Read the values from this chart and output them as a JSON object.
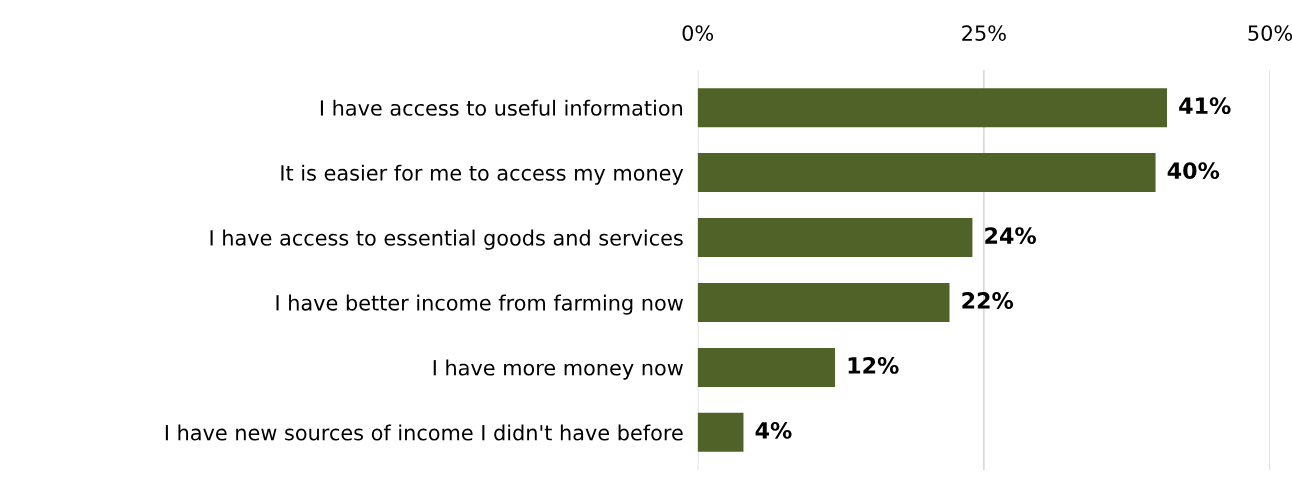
{
  "chart_data": {
    "type": "bar",
    "orientation": "horizontal",
    "categories": [
      "I have access to useful information",
      "It is easier for me to access my money",
      "I have access to essential goods and services",
      "I have better income from farming now",
      "I have more money now",
      "I have new sources of income I didn't have before"
    ],
    "values": [
      41,
      40,
      24,
      22,
      12,
      4
    ],
    "color": "#4f6228",
    "value_labels": [
      "41%",
      "40%",
      "24%",
      "22%",
      "12%",
      "4%"
    ],
    "xlim": [
      0,
      50
    ],
    "xticks": [
      {
        "value": 0,
        "label": "0%"
      },
      {
        "value": 25,
        "label": "25%"
      },
      {
        "value": 50,
        "label": "50%"
      }
    ],
    "grid": "x"
  }
}
